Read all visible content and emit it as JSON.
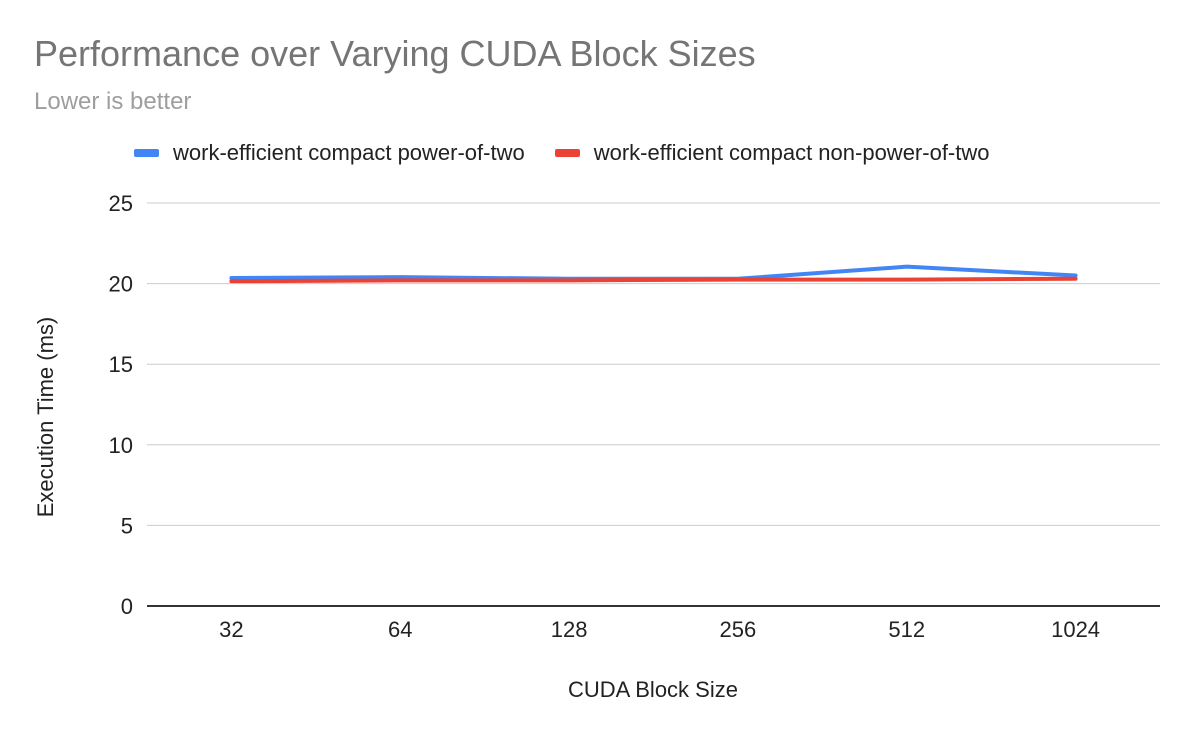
{
  "chart_data": {
    "type": "line",
    "title": "Performance over Varying CUDA Block Sizes",
    "subtitle": "Lower is better",
    "xlabel": "CUDA Block Size",
    "ylabel": "Execution Time (ms)",
    "categories": [
      "32",
      "64",
      "128",
      "256",
      "512",
      "1024"
    ],
    "ylim": [
      0,
      25
    ],
    "yticks": [
      "0",
      "5",
      "10",
      "15",
      "20",
      "25"
    ],
    "grid": true,
    "legend_position": "top",
    "series": [
      {
        "name": "work-efficient compact power-of-two",
        "color": "#4285f4",
        "values": [
          20.35,
          20.4,
          20.3,
          20.3,
          21.05,
          20.5
        ]
      },
      {
        "name": "work-efficient compact non-power-of-two",
        "color": "#ea4335",
        "values": [
          20.15,
          20.2,
          20.2,
          20.25,
          20.25,
          20.3
        ]
      }
    ]
  }
}
